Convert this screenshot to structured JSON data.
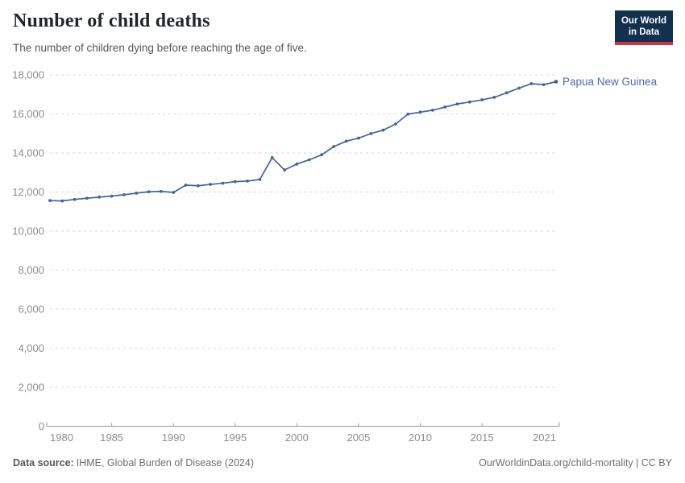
{
  "header": {
    "title": "Number of child deaths",
    "subtitle": "The number of children dying before reaching the age of five."
  },
  "logo": {
    "line1": "Our World",
    "line2": "in Data",
    "bg_color": "#12304f",
    "accent_color": "#c9353c"
  },
  "chart_data": {
    "type": "line",
    "title": "Number of child deaths",
    "xlabel": "",
    "ylabel": "",
    "x": [
      1980,
      1981,
      1982,
      1983,
      1984,
      1985,
      1986,
      1987,
      1988,
      1989,
      1990,
      1991,
      1992,
      1993,
      1994,
      1995,
      1996,
      1997,
      1998,
      1999,
      2000,
      2001,
      2002,
      2003,
      2004,
      2005,
      2006,
      2007,
      2008,
      2009,
      2010,
      2011,
      2012,
      2013,
      2014,
      2015,
      2016,
      2017,
      2018,
      2019,
      2020,
      2021
    ],
    "series": [
      {
        "name": "Papua New Guinea",
        "color": "#44639f",
        "label_color": "#4d6bae",
        "values": [
          11560,
          11540,
          11620,
          11680,
          11740,
          11790,
          11860,
          11940,
          12010,
          12030,
          11980,
          12350,
          12320,
          12390,
          12450,
          12530,
          12560,
          12640,
          13760,
          13130,
          13430,
          13650,
          13900,
          14330,
          14600,
          14760,
          14990,
          15170,
          15480,
          15990,
          16090,
          16190,
          16350,
          16510,
          16610,
          16720,
          16850,
          17080,
          17320,
          17550,
          17500,
          17650
        ]
      }
    ],
    "xlim": [
      1980,
      2021
    ],
    "ylim": [
      0,
      18000
    ],
    "xticks": [
      1980,
      1985,
      1990,
      1995,
      2000,
      2005,
      2010,
      2015,
      2021
    ],
    "yticks": [
      0,
      2000,
      4000,
      6000,
      8000,
      10000,
      12000,
      14000,
      16000,
      18000
    ],
    "grid": "horizontal-dashed",
    "gridline_color": "#d8d8d8",
    "axis_color": "#999999",
    "tick_label_color": "#8c8c8c",
    "legend_position": "line-end-label"
  },
  "footer": {
    "source_label": "Data source:",
    "source_text": "IHME, Global Burden of Disease (2024)",
    "link_text": "OurWorldinData.org/child-mortality | CC BY"
  }
}
